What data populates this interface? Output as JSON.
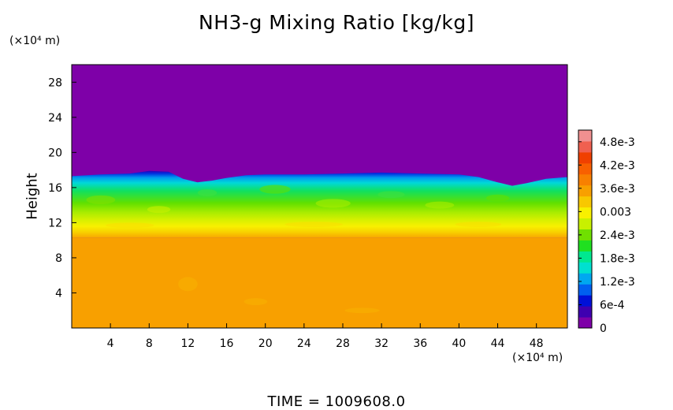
{
  "chart_data": {
    "type": "heatmap",
    "title": "NH3-g Mixing Ratio [kg/kg]",
    "ylabel": "Height",
    "y_unit": "(×10⁴ m)",
    "x_unit": "(×10⁴ m)",
    "footer": "TIME  =  1009608.0",
    "x_ticks": [
      4,
      8,
      12,
      16,
      20,
      24,
      28,
      32,
      36,
      40,
      44,
      48
    ],
    "y_ticks": [
      4,
      8,
      12,
      16,
      20,
      24,
      28
    ],
    "xlim": [
      0,
      51.2
    ],
    "ylim": [
      0,
      30
    ],
    "colorbar": {
      "labels": [
        "0",
        "6e-4",
        "1.2e-3",
        "1.8e-3",
        "2.4e-3",
        "0.003",
        "3.6e-3",
        "4.2e-3",
        "4.8e-3"
      ],
      "values": [
        0,
        0.0006,
        0.0012,
        0.0018,
        0.0024,
        0.003,
        0.0036,
        0.0042,
        0.0048
      ],
      "vmin": 0,
      "vmax": 0.0051,
      "colors": [
        "#7e00a8",
        "#3e00b0",
        "#0010d8",
        "#0060f0",
        "#00a8f0",
        "#00e0d0",
        "#00e890",
        "#20e020",
        "#70e000",
        "#c8f000",
        "#f8f000",
        "#f8c800",
        "#f8a000",
        "#f88000",
        "#f86000",
        "#f04000",
        "#f06050",
        "#f09090"
      ]
    },
    "regions": {
      "upper_value": 0,
      "cloud_layer_value_range": [
        0.0006,
        0.0036
      ],
      "lower_value": 0.0041
    },
    "cloud_top": [
      [
        0,
        17.3
      ],
      [
        3,
        17.5
      ],
      [
        6,
        17.6
      ],
      [
        8,
        17.9
      ],
      [
        10,
        17.8
      ],
      [
        11.5,
        17.0
      ],
      [
        13,
        16.6
      ],
      [
        14.5,
        16.8
      ],
      [
        16,
        17.1
      ],
      [
        18,
        17.4
      ],
      [
        20,
        17.5
      ],
      [
        24,
        17.5
      ],
      [
        28,
        17.6
      ],
      [
        32,
        17.7
      ],
      [
        36,
        17.6
      ],
      [
        40,
        17.5
      ],
      [
        42,
        17.2
      ],
      [
        44,
        16.6
      ],
      [
        45.5,
        16.2
      ],
      [
        47,
        16.5
      ],
      [
        49,
        17.0
      ],
      [
        51.2,
        17.2
      ]
    ]
  }
}
